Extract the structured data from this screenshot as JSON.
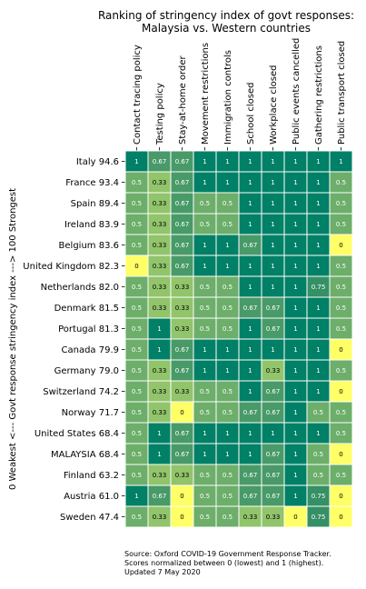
{
  "chart_data": {
    "type": "heatmap",
    "title": "Ranking of stringency index of govt responses:\nMalaysia vs. Western countries",
    "ylabel": "0 Weakest <--- Govt response stringency index ---> 100 Strongest",
    "columns": [
      "Contact tracing policy",
      "Testing policy",
      "Stay-at-home order",
      "Movement restrictions",
      "Immigration controls",
      "School closed",
      "Workplace closed",
      "Public events cancelled",
      "Gathering restrictions",
      "Public transport closed"
    ],
    "rows": [
      "Italy 94.6",
      "France 93.4",
      "Spain 89.4",
      "Ireland 83.9",
      "Belgium 83.6",
      "United Kingdom 82.3",
      "Netherlands 82.0",
      "Denmark 81.5",
      "Portugal 81.3",
      "Canada 79.9",
      "Germany 79.0",
      "Switzerland 74.2",
      "Norway 71.7",
      "United States 68.4",
      "MALAYSIA 68.4",
      "Finland 63.2",
      "Austria 61.0",
      "Sweden 47.4"
    ],
    "values": [
      [
        "1",
        "0.67",
        "0.67",
        "1",
        "1",
        "1",
        "1",
        "1",
        "1",
        "1"
      ],
      [
        "0.5",
        "0.33",
        "0.67",
        "1",
        "1",
        "1",
        "1",
        "1",
        "1",
        "0.5"
      ],
      [
        "0.5",
        "0.33",
        "0.67",
        "0.5",
        "0.5",
        "1",
        "1",
        "1",
        "1",
        "0.5"
      ],
      [
        "0.5",
        "0.33",
        "0.67",
        "0.5",
        "0.5",
        "1",
        "1",
        "1",
        "1",
        "0.5"
      ],
      [
        "0.5",
        "0.33",
        "0.67",
        "1",
        "1",
        "0.67",
        "1",
        "1",
        "1",
        "0"
      ],
      [
        "0",
        "0.33",
        "0.67",
        "1",
        "1",
        "1",
        "1",
        "1",
        "1",
        "0.5"
      ],
      [
        "0.5",
        "0.33",
        "0.33",
        "0.5",
        "0.5",
        "1",
        "1",
        "1",
        "0.75",
        "0.5"
      ],
      [
        "0.5",
        "0.33",
        "0.33",
        "0.5",
        "0.5",
        "0.67",
        "0.67",
        "1",
        "1",
        "0.5"
      ],
      [
        "0.5",
        "1",
        "0.33",
        "0.5",
        "0.5",
        "1",
        "0.67",
        "1",
        "1",
        "0.5"
      ],
      [
        "0.5",
        "1",
        "0.67",
        "1",
        "1",
        "1",
        "1",
        "1",
        "1",
        "0"
      ],
      [
        "0.5",
        "0.33",
        "0.67",
        "1",
        "1",
        "1",
        "0.33",
        "1",
        "1",
        "0.5"
      ],
      [
        "0.5",
        "0.33",
        "0.33",
        "0.5",
        "0.5",
        "1",
        "0.67",
        "1",
        "1",
        "0"
      ],
      [
        "0.5",
        "0.33",
        "0",
        "0.5",
        "0.5",
        "0.67",
        "0.67",
        "1",
        "0.5",
        "0.5"
      ],
      [
        "0.5",
        "1",
        "0.67",
        "1",
        "1",
        "1",
        "1",
        "1",
        "1",
        "0.5"
      ],
      [
        "0.5",
        "1",
        "0.67",
        "1",
        "1",
        "1",
        "0.67",
        "1",
        "0.5",
        "0"
      ],
      [
        "0.5",
        "0.33",
        "0.33",
        "0.5",
        "0.5",
        "0.67",
        "0.67",
        "1",
        "0.5",
        "0.5"
      ],
      [
        "1",
        "0.67",
        "0",
        "0.5",
        "0.5",
        "0.67",
        "0.67",
        "1",
        "0.75",
        "0"
      ],
      [
        "0.5",
        "0.33",
        "0",
        "0.5",
        "0.5",
        "0.33",
        "0.33",
        "0",
        "0.75",
        "0"
      ]
    ],
    "colors": {
      "0": "#ffff66",
      "0.33": "#91c46b",
      "0.5": "#6cae6a",
      "0.67": "#489a68",
      "0.75": "#369066",
      "1": "#008066"
    }
  },
  "source_text": "Source: Oxford COVID-19 Government Response Tracker.\nScores normalized between 0 (lowest) and 1 (highest).\nUpdated 7 May 2020"
}
